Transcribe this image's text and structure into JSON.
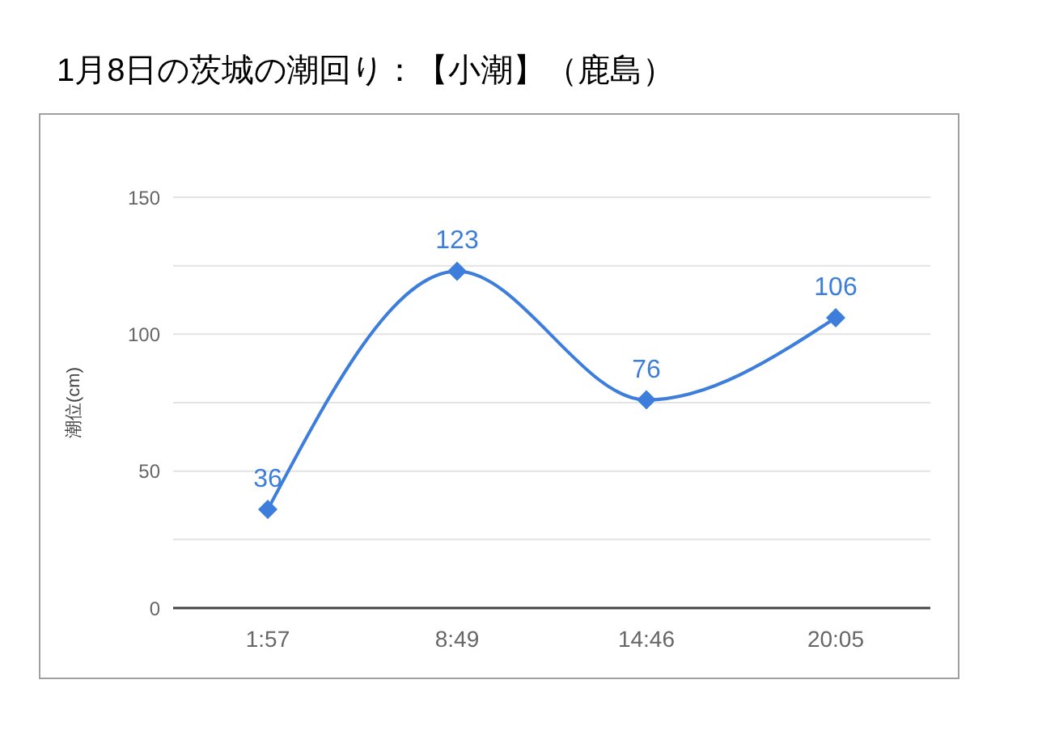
{
  "chart_data": {
    "type": "line",
    "title": "1月8日の茨城の潮回り：【小潮】（鹿島）",
    "ylabel": "潮位(cm)",
    "categories": [
      "1:57",
      "8:49",
      "14:46",
      "20:05"
    ],
    "values": [
      36,
      123,
      76,
      106
    ],
    "color": "#3d7ddc",
    "ylim": [
      0,
      150
    ],
    "yticks": [
      0,
      {
        "value": 25,
        "label": null
      },
      50,
      {
        "value": 75,
        "label": null
      },
      100,
      {
        "value": 125,
        "label": null
      },
      150
    ],
    "grid": "y",
    "marker": "diamond",
    "line_style": "solid",
    "data_labels": true
  }
}
